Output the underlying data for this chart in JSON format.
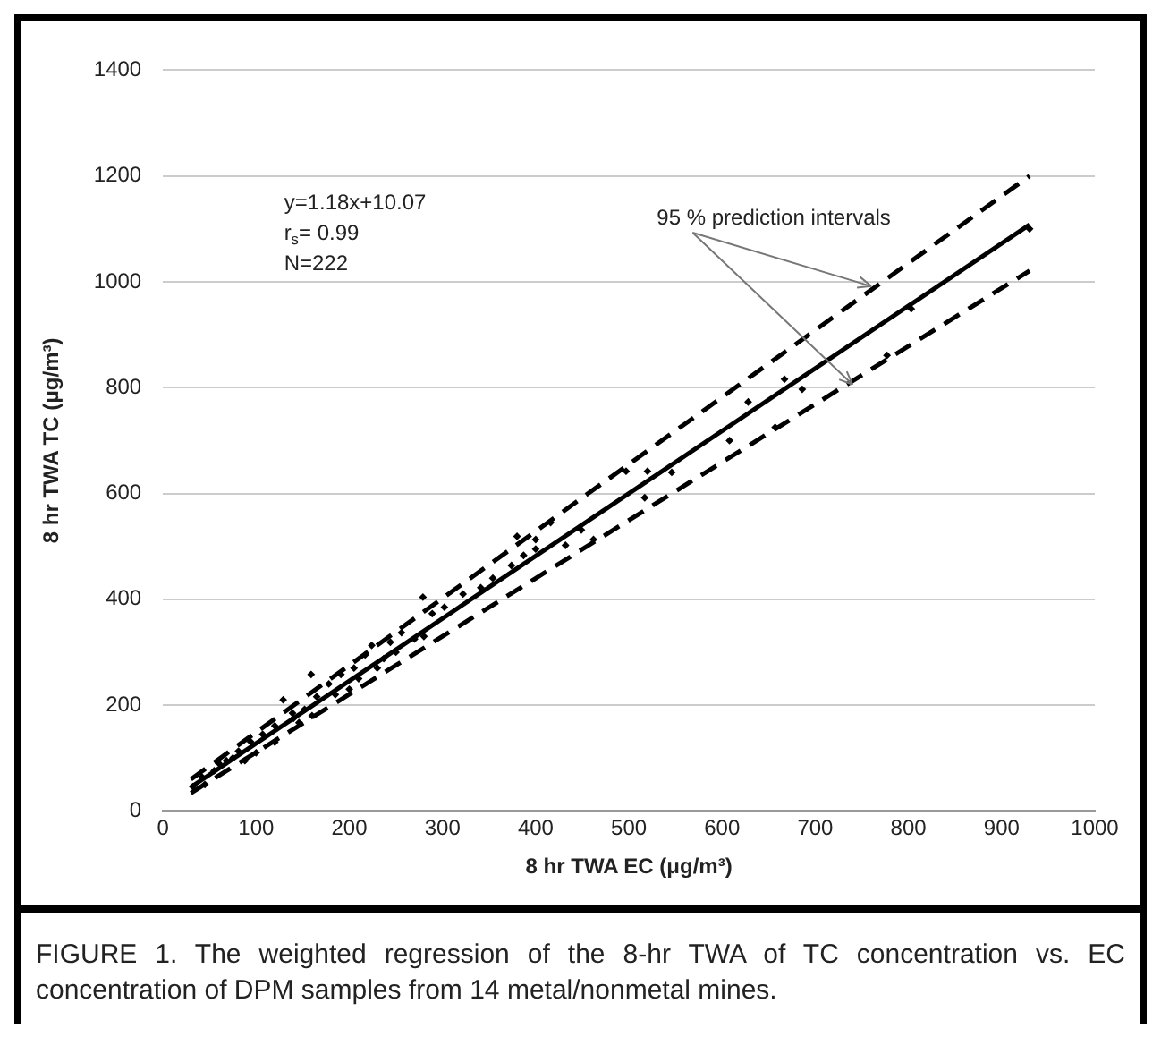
{
  "chart_data": {
    "type": "scatter",
    "xlabel": "8 hr TWA EC (μg/m³)",
    "ylabel": "8 hr TWA TC (μg/m³)",
    "xlim": [
      0,
      1000
    ],
    "xticks": [
      0,
      100,
      200,
      300,
      400,
      500,
      600,
      700,
      800,
      900,
      1000
    ],
    "ylim": [
      0,
      1400
    ],
    "yticks": [
      0,
      200,
      400,
      600,
      800,
      1000,
      1200,
      1400
    ],
    "grid": "y",
    "legend": false,
    "annotations": [
      "y=1.18x+10.07",
      "r$_{s}$= 0.99",
      "N=222",
      {
        "text": "95 % prediction intervals",
        "x": 760,
        "y": 985
      },
      "FIGURE 1.  The weighted regression of the 8-hr TWA of TC concentration vs. EC concentration of DPM samples from 14 metal/nonmetal mines."
    ],
    "series": [
      {
        "type": "scatter",
        "marker": "diamond",
        "color": "#000000",
        "x": [
          32,
          42,
          55,
          68,
          81,
          94,
          107,
          120,
          129,
          139,
          152,
          159,
          165,
          178,
          191,
          205,
          217,
          224,
          237,
          244,
          256,
          270,
          279,
          289,
          302,
          322,
          341,
          354,
          374,
          387,
          400,
          45,
          88,
          146,
          100,
          60,
          120,
          200,
          230,
          160,
          250,
          280,
          210,
          185,
          140,
          75,
          380,
          416,
          400,
          432,
          449,
          462,
          497,
          520,
          517,
          546,
          608,
          657,
          628,
          667,
          686,
          777,
          803,
          930
        ],
        "values": [
          46,
          64,
          76,
          95,
          113,
          131,
          145,
          161,
          210,
          185,
          192,
          258,
          216,
          240,
          258,
          270,
          295,
          313,
          288,
          319,
          337,
          325,
          404,
          373,
          385,
          410,
          422,
          440,
          464,
          483,
          513,
          50,
          95,
          167,
          110,
          90,
          130,
          230,
          270,
          180,
          300,
          330,
          250,
          220,
          175,
          100,
          519,
          545,
          495,
          502,
          531,
          513,
          642,
          642,
          592,
          640,
          700,
          725,
          773,
          816,
          797,
          861,
          949,
          1100
        ]
      },
      {
        "type": "line",
        "color": "#000000",
        "line_style": "solid",
        "marker": "none",
        "x": [
          30,
          930
        ],
        "values": [
          45,
          1108
        ]
      },
      {
        "type": "line",
        "color": "#000000",
        "line_style": "dashed",
        "marker": "none",
        "x": [
          30,
          930
        ],
        "values": [
          60,
          1200
        ]
      },
      {
        "type": "line",
        "color": "#000000",
        "line_style": "dashed",
        "marker": "none",
        "x": [
          30,
          930
        ],
        "values": [
          34,
          1021
        ]
      }
    ]
  }
}
